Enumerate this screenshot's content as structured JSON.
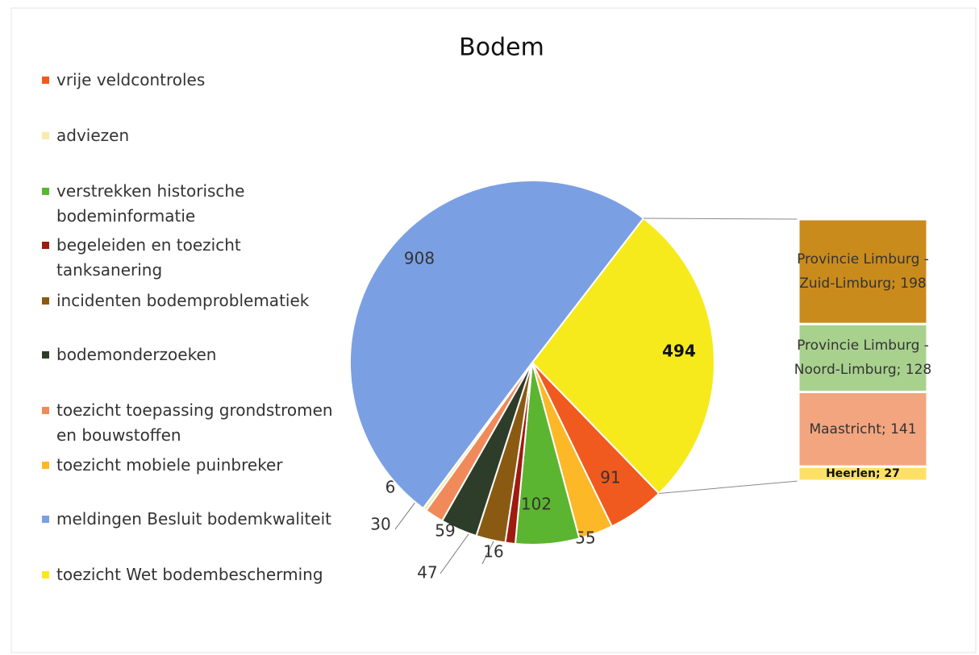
{
  "chart_data": {
    "type": "pie-of-bar",
    "title": "Bodem",
    "categories": [
      "toezicht Wet bodembescherming",
      "vrije veldcontroles",
      "toezicht mobiele puinbreker",
      "verstrekken historische bodeminformatie",
      "begeleiden en toezicht tanksanering",
      "incidenten bodemproblematiek",
      "bodemonderzoeken",
      "toezicht toepassing grondstromen en bouwstoffen",
      "adviezen",
      "meldingen Besluit bodemkwaliteit"
    ],
    "values": [
      494,
      91,
      55,
      102,
      16,
      47,
      59,
      30,
      6,
      908
    ],
    "colors": [
      "#f6ea1c",
      "#f05a1e",
      "#fdb827",
      "#5cb531",
      "#9e1b10",
      "#8b5a12",
      "#2e3d2a",
      "#f08a5a",
      "#f7ebb0",
      "#7b9fe3"
    ],
    "legend": "left",
    "breakdown": {
      "values": [
        198,
        128,
        141,
        27
      ],
      "value_labels": [
        "Provincie Limburg - Zuid-Limburg; 198",
        "Provincie Limburg - Noord-Limburg; 128",
        "Maastricht; 141",
        "Heerlen; 27"
      ],
      "colors": [
        "#c98b1c",
        "#a9d18e",
        "#f3a57f",
        "#ffe066"
      ]
    }
  }
}
